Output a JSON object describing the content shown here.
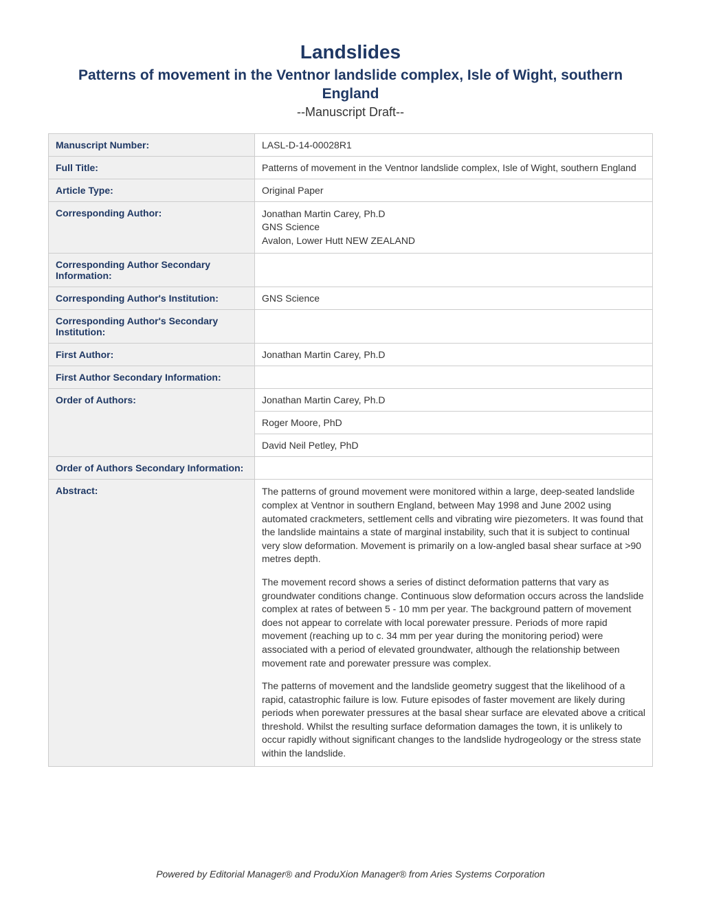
{
  "header": {
    "journal_title": "Landslides",
    "article_title": "Patterns of movement in the Ventnor landslide complex, Isle of Wight, southern England",
    "draft_label": "--Manuscript Draft--"
  },
  "fields": {
    "manuscript_number": {
      "label": "Manuscript Number:",
      "value": "LASL-D-14-00028R1"
    },
    "full_title": {
      "label": "Full Title:",
      "value": "Patterns of movement in the Ventnor landslide complex, Isle of Wight, southern England"
    },
    "article_type": {
      "label": "Article Type:",
      "value": "Original Paper"
    },
    "corresponding_author": {
      "label": "Corresponding Author:",
      "name": "Jonathan Martin Carey, Ph.D",
      "institution": "GNS Science",
      "location": "Avalon, Lower Hutt NEW ZEALAND"
    },
    "corresponding_author_secondary_info": {
      "label": "Corresponding Author Secondary Information:",
      "value": ""
    },
    "corresponding_author_institution": {
      "label": "Corresponding Author's Institution:",
      "value": "GNS Science"
    },
    "corresponding_author_secondary_institution": {
      "label": "Corresponding Author's Secondary Institution:",
      "value": ""
    },
    "first_author": {
      "label": "First Author:",
      "value": "Jonathan Martin Carey, Ph.D"
    },
    "first_author_secondary_info": {
      "label": "First Author Secondary Information:",
      "value": ""
    },
    "order_of_authors": {
      "label": "Order of Authors:",
      "authors": [
        "Jonathan Martin Carey, Ph.D",
        "Roger Moore, PhD",
        "David Neil Petley, PhD"
      ]
    },
    "order_of_authors_secondary_info": {
      "label": "Order of Authors Secondary Information:",
      "value": ""
    },
    "abstract": {
      "label": "Abstract:",
      "para1": "The patterns of ground movement were monitored within a large, deep-seated landslide complex at Ventnor in southern England, between May 1998 and June 2002 using automated crackmeters, settlement cells and vibrating wire piezometers. It was found that the landslide maintains a state of marginal instability, such that it is subject to continual very slow deformation. Movement is primarily on a low-angled basal shear surface at >90 metres depth.",
      "para2": "The movement record shows a series of distinct deformation patterns that vary as groundwater conditions change.  Continuous slow deformation occurs across the landslide complex at rates of between 5 - 10 mm per year. The background pattern of movement does not appear to correlate with local porewater pressure.  Periods of more rapid movement (reaching up to c. 34 mm per year during the monitoring period) were associated with a period of elevated groundwater, although the relationship between movement rate and porewater pressure was complex.",
      "para3": "The patterns of movement and the landslide geometry suggest that the likelihood of a rapid, catastrophic failure is low. Future episodes of faster movement are likely during periods when porewater pressures at the basal shear surface are elevated above a critical threshold. Whilst the resulting surface deformation damages the town, it is unlikely to occur rapidly without significant changes to the landslide hydrogeology or the stress state within the landslide."
    }
  },
  "footer": {
    "text": "Powered by Editorial Manager® and ProduXion Manager® from Aries Systems Corporation"
  },
  "colors": {
    "heading_color": "#1f3864",
    "text_color": "#333333",
    "label_bg": "#f0f0f0",
    "border_color": "#cccccc",
    "page_bg": "#ffffff"
  }
}
